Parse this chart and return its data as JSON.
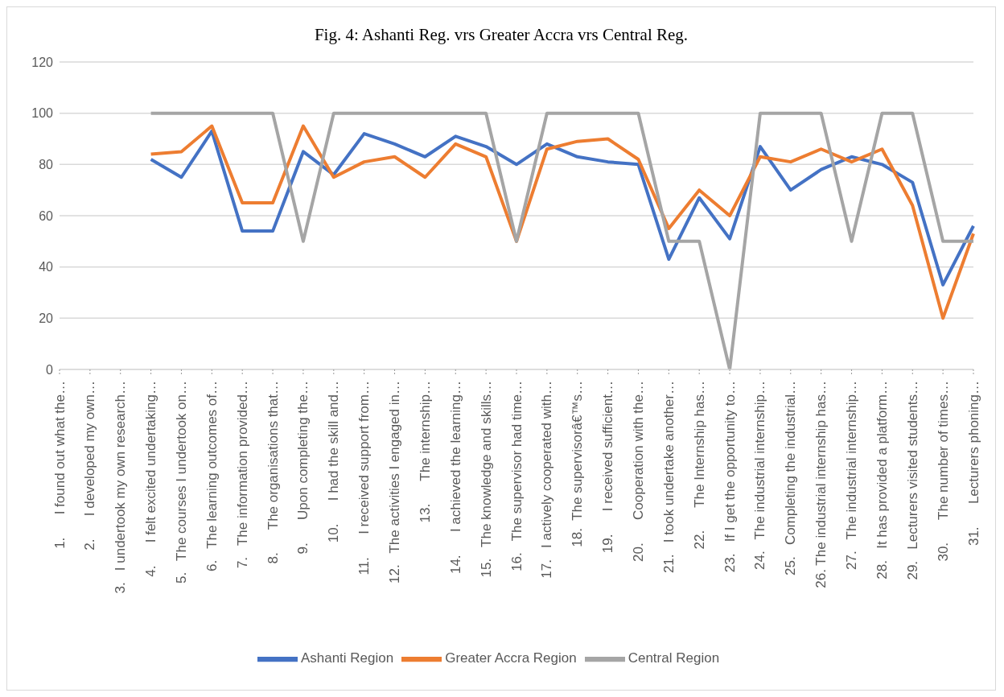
{
  "chart_data": {
    "type": "line",
    "title": "Fig. 4: Ashanti Reg. vrs Greater Accra vrs Central Reg.",
    "categories": [
      "1.      I found out what the…",
      "2.      I developed my own…",
      "3.   I undertook my own research…",
      "4.      I felt excited undertaking…",
      "5.   The courses I undertook on…",
      "6.   The learning outcomes of…",
      "7.   The information provided…",
      "8.      The organisations that…",
      "9.      Upon completing the…",
      "10.      I had the skill and…",
      "11.      I received support from…",
      "12.   The activities I engaged in…",
      "13.      The internship…",
      "14.      I achieved the learning…",
      "15.   The knowledge and skills…",
      "16.   The supervisor had time…",
      "17.   I actively cooperated with…",
      "18.  The supervisorâ€™s…",
      "19.      I received sufficient…",
      "20.      Cooperation with the…",
      "21.   I took undertake another…",
      "22.      The Internship has…",
      "23.   If I get the opportunity to…",
      "24.   The industrial internship…",
      "25.   Completing the industrial…",
      "26. The industrial internship has…",
      "27.   The industrial internship…",
      "28.   It has provided a platform…",
      "29.   Lecturers visited students…",
      "30.      The number of times…",
      "31.      Lecturers phoning…"
    ],
    "series": [
      {
        "name": "Ashanti Region",
        "color": "#4472c4",
        "values": [
          null,
          null,
          null,
          82,
          75,
          93,
          54,
          54,
          85,
          76,
          92,
          88,
          83,
          91,
          87,
          80,
          88,
          83,
          81,
          80,
          43,
          67,
          51,
          87,
          70,
          78,
          83,
          80,
          73,
          33,
          56
        ]
      },
      {
        "name": "Greater Accra Region",
        "color": "#ed7d31",
        "values": [
          null,
          null,
          null,
          84,
          85,
          95,
          65,
          65,
          95,
          75,
          81,
          83,
          75,
          88,
          83,
          50,
          86,
          89,
          90,
          82,
          55,
          70,
          60,
          83,
          81,
          86,
          81,
          86,
          64,
          20,
          53
        ]
      },
      {
        "name": "Central Region",
        "color": "#a5a5a5",
        "values": [
          null,
          null,
          null,
          100,
          100,
          100,
          100,
          100,
          50,
          100,
          100,
          100,
          100,
          100,
          100,
          50,
          100,
          100,
          100,
          100,
          50,
          50,
          0,
          100,
          100,
          100,
          50,
          100,
          100,
          50,
          50
        ]
      }
    ],
    "ylim": [
      0,
      120
    ],
    "yticks": [
      0,
      20,
      40,
      60,
      80,
      100,
      120
    ],
    "grid": "y",
    "legend": "bottom",
    "marker": "none",
    "line_style": "solid"
  }
}
